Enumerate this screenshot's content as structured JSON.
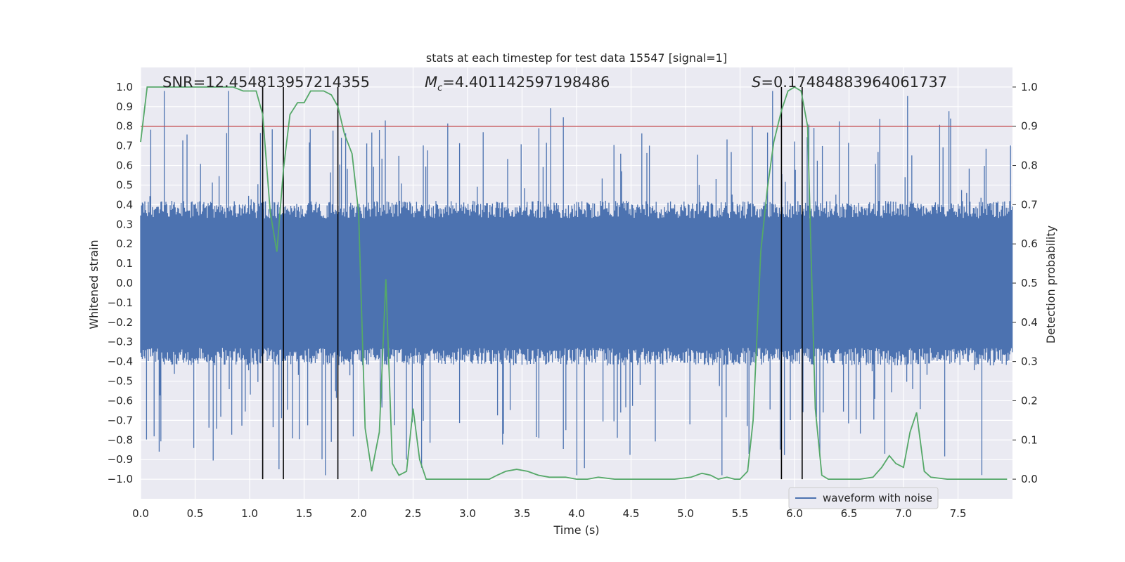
{
  "chart_data": {
    "type": "line",
    "title": "stats at each timestep for test data 15547 [signal=1]",
    "xlabel": "Time (s)",
    "ylabel": "Whitened strain",
    "ylabel_right": "Detection probability",
    "xlim": [
      0.0,
      8.0
    ],
    "ylim": [
      -1.1,
      1.1
    ],
    "ylim_right": [
      -0.05,
      1.05
    ],
    "x_ticks": [
      "0.0",
      "0.5",
      "1.0",
      "1.5",
      "2.0",
      "2.5",
      "3.0",
      "3.5",
      "4.0",
      "4.5",
      "5.0",
      "5.5",
      "6.0",
      "6.5",
      "7.0",
      "7.5"
    ],
    "y_ticks": [
      "1.0",
      "0.9",
      "0.8",
      "0.7",
      "0.6",
      "0.5",
      "0.4",
      "0.3",
      "0.2",
      "0.1",
      "0.0",
      "−0.1",
      "−0.2",
      "−0.3",
      "−0.4",
      "−0.5",
      "−0.6",
      "−0.7",
      "−0.8",
      "−0.9",
      "−1.0"
    ],
    "y_right_ticks": [
      "1.0",
      "0.9",
      "0.8",
      "0.7",
      "0.6",
      "0.5",
      "0.4",
      "0.3",
      "0.2",
      "0.1",
      "0.0"
    ],
    "annotations": {
      "snr": "SNR=12.454813957214355",
      "mc_symbol": "M",
      "mc_sub": "c",
      "mc_value": "=4.401142597198486",
      "s_symbol": "S",
      "s_value": "=0.17484883964061737"
    },
    "threshold": {
      "value": 0.9,
      "axis": "right",
      "color": "#c44e52"
    },
    "vertical_lines": [
      1.12,
      1.31,
      1.81,
      5.88,
      6.07
    ],
    "legend": {
      "label": "waveform with noise",
      "position": "lower-right"
    },
    "series": [
      {
        "name": "waveform with noise",
        "axis": "left",
        "color": "#4c72b0",
        "band_typical": 0.33,
        "band_peak": 0.75
      },
      {
        "name": "detection probability",
        "axis": "right",
        "color": "#55a868",
        "x": [
          0.0,
          0.06,
          0.12,
          0.25,
          0.4,
          0.55,
          0.7,
          0.85,
          0.94,
          1.0,
          1.06,
          1.12,
          1.19,
          1.25,
          1.31,
          1.37,
          1.44,
          1.5,
          1.56,
          1.62,
          1.68,
          1.75,
          1.81,
          1.87,
          1.94,
          2.0,
          2.06,
          2.12,
          2.19,
          2.25,
          2.31,
          2.37,
          2.44,
          2.5,
          2.56,
          2.62,
          2.68,
          2.75,
          2.9,
          3.1,
          3.2,
          3.27,
          3.35,
          3.45,
          3.55,
          3.65,
          3.75,
          3.9,
          4.0,
          4.1,
          4.2,
          4.35,
          4.5,
          4.7,
          4.9,
          5.05,
          5.15,
          5.23,
          5.3,
          5.38,
          5.45,
          5.5,
          5.57,
          5.62,
          5.69,
          5.75,
          5.81,
          5.88,
          5.94,
          6.0,
          6.06,
          6.12,
          6.19,
          6.25,
          6.31,
          6.45,
          6.6,
          6.72,
          6.8,
          6.87,
          6.93,
          7.0,
          7.06,
          7.12,
          7.19,
          7.25,
          7.4,
          7.6,
          7.8,
          7.95
        ],
        "values": [
          0.86,
          1.0,
          1.0,
          1.0,
          1.0,
          1.0,
          1.0,
          1.0,
          0.99,
          0.99,
          0.99,
          0.93,
          0.68,
          0.58,
          0.79,
          0.93,
          0.96,
          0.96,
          0.99,
          0.99,
          0.99,
          0.98,
          0.95,
          0.88,
          0.83,
          0.68,
          0.13,
          0.02,
          0.12,
          0.51,
          0.04,
          0.01,
          0.02,
          0.18,
          0.05,
          0.0,
          0.0,
          0.0,
          0.0,
          0.0,
          0.0,
          0.01,
          0.02,
          0.025,
          0.02,
          0.01,
          0.005,
          0.005,
          0.0,
          0.0,
          0.005,
          0.0,
          0.0,
          0.0,
          0.0,
          0.005,
          0.015,
          0.01,
          0.0,
          0.005,
          0.0,
          0.0,
          0.02,
          0.15,
          0.58,
          0.74,
          0.86,
          0.94,
          0.99,
          1.0,
          0.99,
          0.9,
          0.18,
          0.01,
          0.0,
          0.0,
          0.0,
          0.005,
          0.03,
          0.06,
          0.04,
          0.03,
          0.12,
          0.17,
          0.02,
          0.005,
          0.0,
          0.0,
          0.0,
          0.0
        ]
      }
    ]
  }
}
